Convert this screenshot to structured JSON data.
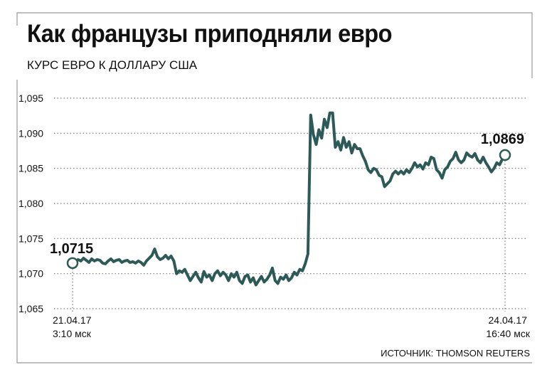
{
  "title": "Как французы приподняли евро",
  "subtitle": "КУРС ЕВРО К ДОЛЛАРУ США",
  "source": "ИСТОЧНИК: THOMSON REUTERS",
  "colors": {
    "line": "#2d5a57",
    "grid": "#777777",
    "frame": "#999999",
    "text": "#111111"
  },
  "chart_data": {
    "type": "line",
    "title": "Как французы приподняли евро",
    "subtitle": "КУРС ЕВРО К ДОЛЛАРУ США",
    "ylim": [
      1.065,
      1.095
    ],
    "yticks": [
      1.065,
      1.07,
      1.075,
      1.08,
      1.085,
      1.09,
      1.095
    ],
    "ytick_labels": [
      "1,065",
      "1,070",
      "1,075",
      "1,080",
      "1,085",
      "1,090",
      "1,095"
    ],
    "grid": true,
    "start": {
      "date": "21.04.17",
      "time": "3:10 мск",
      "value": 1.0715,
      "label": "1,0715"
    },
    "end": {
      "date": "24.04.17",
      "time": "16:40 мск",
      "value": 1.0869,
      "label": "1,0869"
    },
    "values": [
      1.0715,
      1.0717,
      1.072,
      1.0718,
      1.0722,
      1.0719,
      1.0716,
      1.0721,
      1.0718,
      1.072,
      1.0719,
      1.0715,
      1.0714,
      1.0718,
      1.0721,
      1.0717,
      1.0719,
      1.072,
      1.0716,
      1.0718,
      1.0719,
      1.0716,
      1.0717,
      1.0715,
      1.0718,
      1.0716,
      1.0712,
      1.0718,
      1.0722,
      1.0726,
      1.0735,
      1.0724,
      1.072,
      1.0722,
      1.0726,
      1.0721,
      1.0725,
      1.0718,
      1.07,
      1.0704,
      1.0702,
      1.0706,
      1.0698,
      1.069,
      1.0696,
      1.0702,
      1.0694,
      1.0688,
      1.0703,
      1.0695,
      1.0698,
      1.069,
      1.07,
      1.0704,
      1.0697,
      1.0702,
      1.0698,
      1.069,
      1.07,
      1.0695,
      1.0702,
      1.069,
      1.0686,
      1.0696,
      1.0698,
      1.0688,
      1.0694,
      1.0684,
      1.069,
      1.0696,
      1.0688,
      1.0692,
      1.0698,
      1.0708,
      1.069,
      1.0686,
      1.0695,
      1.0692,
      1.0698,
      1.069,
      1.0694,
      1.0702,
      1.0698,
      1.0706,
      1.0704,
      1.0714,
      1.0728,
      1.0926,
      1.0898,
      1.0884,
      1.0905,
      1.0893,
      1.092,
      1.0908,
      1.0929,
      1.0929,
      1.088,
      1.0888,
      1.0876,
      1.0894,
      1.088,
      1.0888,
      1.0872,
      1.0884,
      1.0878,
      1.0878,
      1.0868,
      1.086,
      1.0848,
      1.0844,
      1.085,
      1.0848,
      1.084,
      1.0838,
      1.0824,
      1.0828,
      1.0832,
      1.0842,
      1.0846,
      1.0842,
      1.0846,
      1.0842,
      1.0848,
      1.0844,
      1.085,
      1.0858,
      1.0852,
      1.0855,
      1.0849,
      1.0858,
      1.0855,
      1.0866,
      1.0864,
      1.0848,
      1.0844,
      1.0836,
      1.0848,
      1.0852,
      1.086,
      1.0864,
      1.0873,
      1.0862,
      1.0858,
      1.0862,
      1.0872,
      1.0868,
      1.0866,
      1.0871,
      1.0862,
      1.0858,
      1.0866,
      1.0858,
      1.0852,
      1.0845,
      1.085,
      1.0858,
      1.0855,
      1.0863,
      1.0869
    ]
  }
}
